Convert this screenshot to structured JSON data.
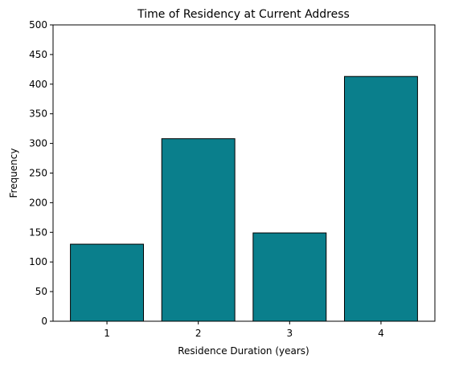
{
  "chart_data": {
    "type": "bar",
    "title": "Time of Residency at Current Address",
    "xlabel": "Residence Duration (years)",
    "ylabel": "Frequency",
    "categories": [
      "1",
      "2",
      "3",
      "4"
    ],
    "values": [
      130,
      308,
      149,
      413
    ],
    "ylim": [
      0,
      500
    ],
    "yticks": [
      "0",
      "50",
      "100",
      "150",
      "200",
      "250",
      "300",
      "350",
      "400",
      "450",
      "500"
    ],
    "grid": false,
    "legend": "none",
    "colors": {
      "bar_fill": "#0a7f8c",
      "bar_edge": "#000000",
      "axis": "#000000",
      "background": "#ffffff"
    }
  }
}
